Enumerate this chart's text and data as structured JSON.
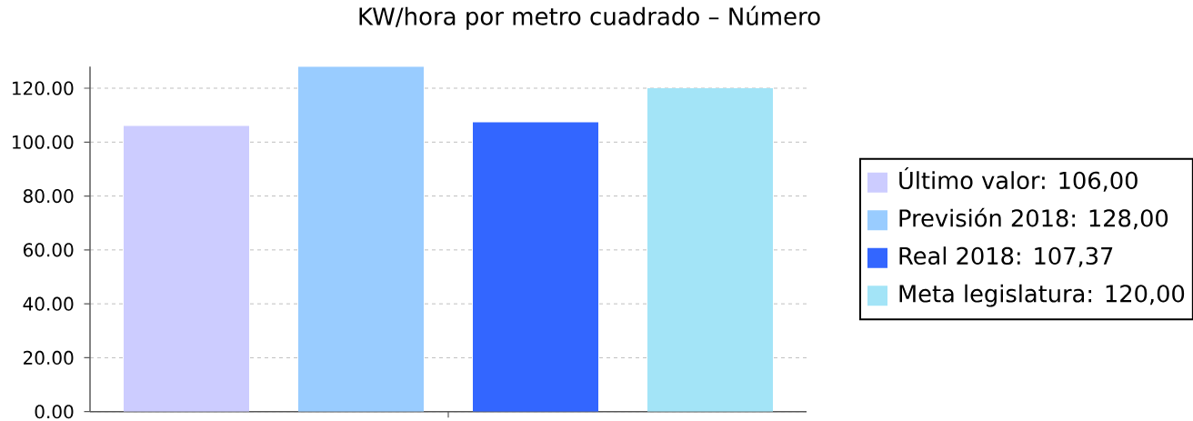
{
  "chart_data": {
    "type": "bar",
    "title": "KW/hora por metro cuadrado – Número",
    "categories": [
      null
    ],
    "series": [
      {
        "name": "Último valor: 106,00",
        "color": "#ccccff",
        "values": [
          106
        ]
      },
      {
        "name": "Previsión 2018: 128,00",
        "color": "#99ccff",
        "values": [
          128
        ]
      },
      {
        "name": "Real 2018: 107,37",
        "color": "#3366ff",
        "values": [
          107.37
        ]
      },
      {
        "name": "Meta legislatura: 120,00",
        "color": "#a3e4f7",
        "values": [
          120
        ]
      }
    ],
    "ylim": [
      0,
      128
    ],
    "yticks": [
      {
        "value": 0,
        "label": "0.00"
      },
      {
        "value": 20,
        "label": "20.00"
      },
      {
        "value": 40,
        "label": "40.00"
      },
      {
        "value": 60,
        "label": "60.00"
      },
      {
        "value": 80,
        "label": "80.00"
      },
      {
        "value": 100,
        "label": "100.00"
      },
      {
        "value": 120,
        "label": "120.00"
      }
    ],
    "grid": "y",
    "legend": "right"
  }
}
